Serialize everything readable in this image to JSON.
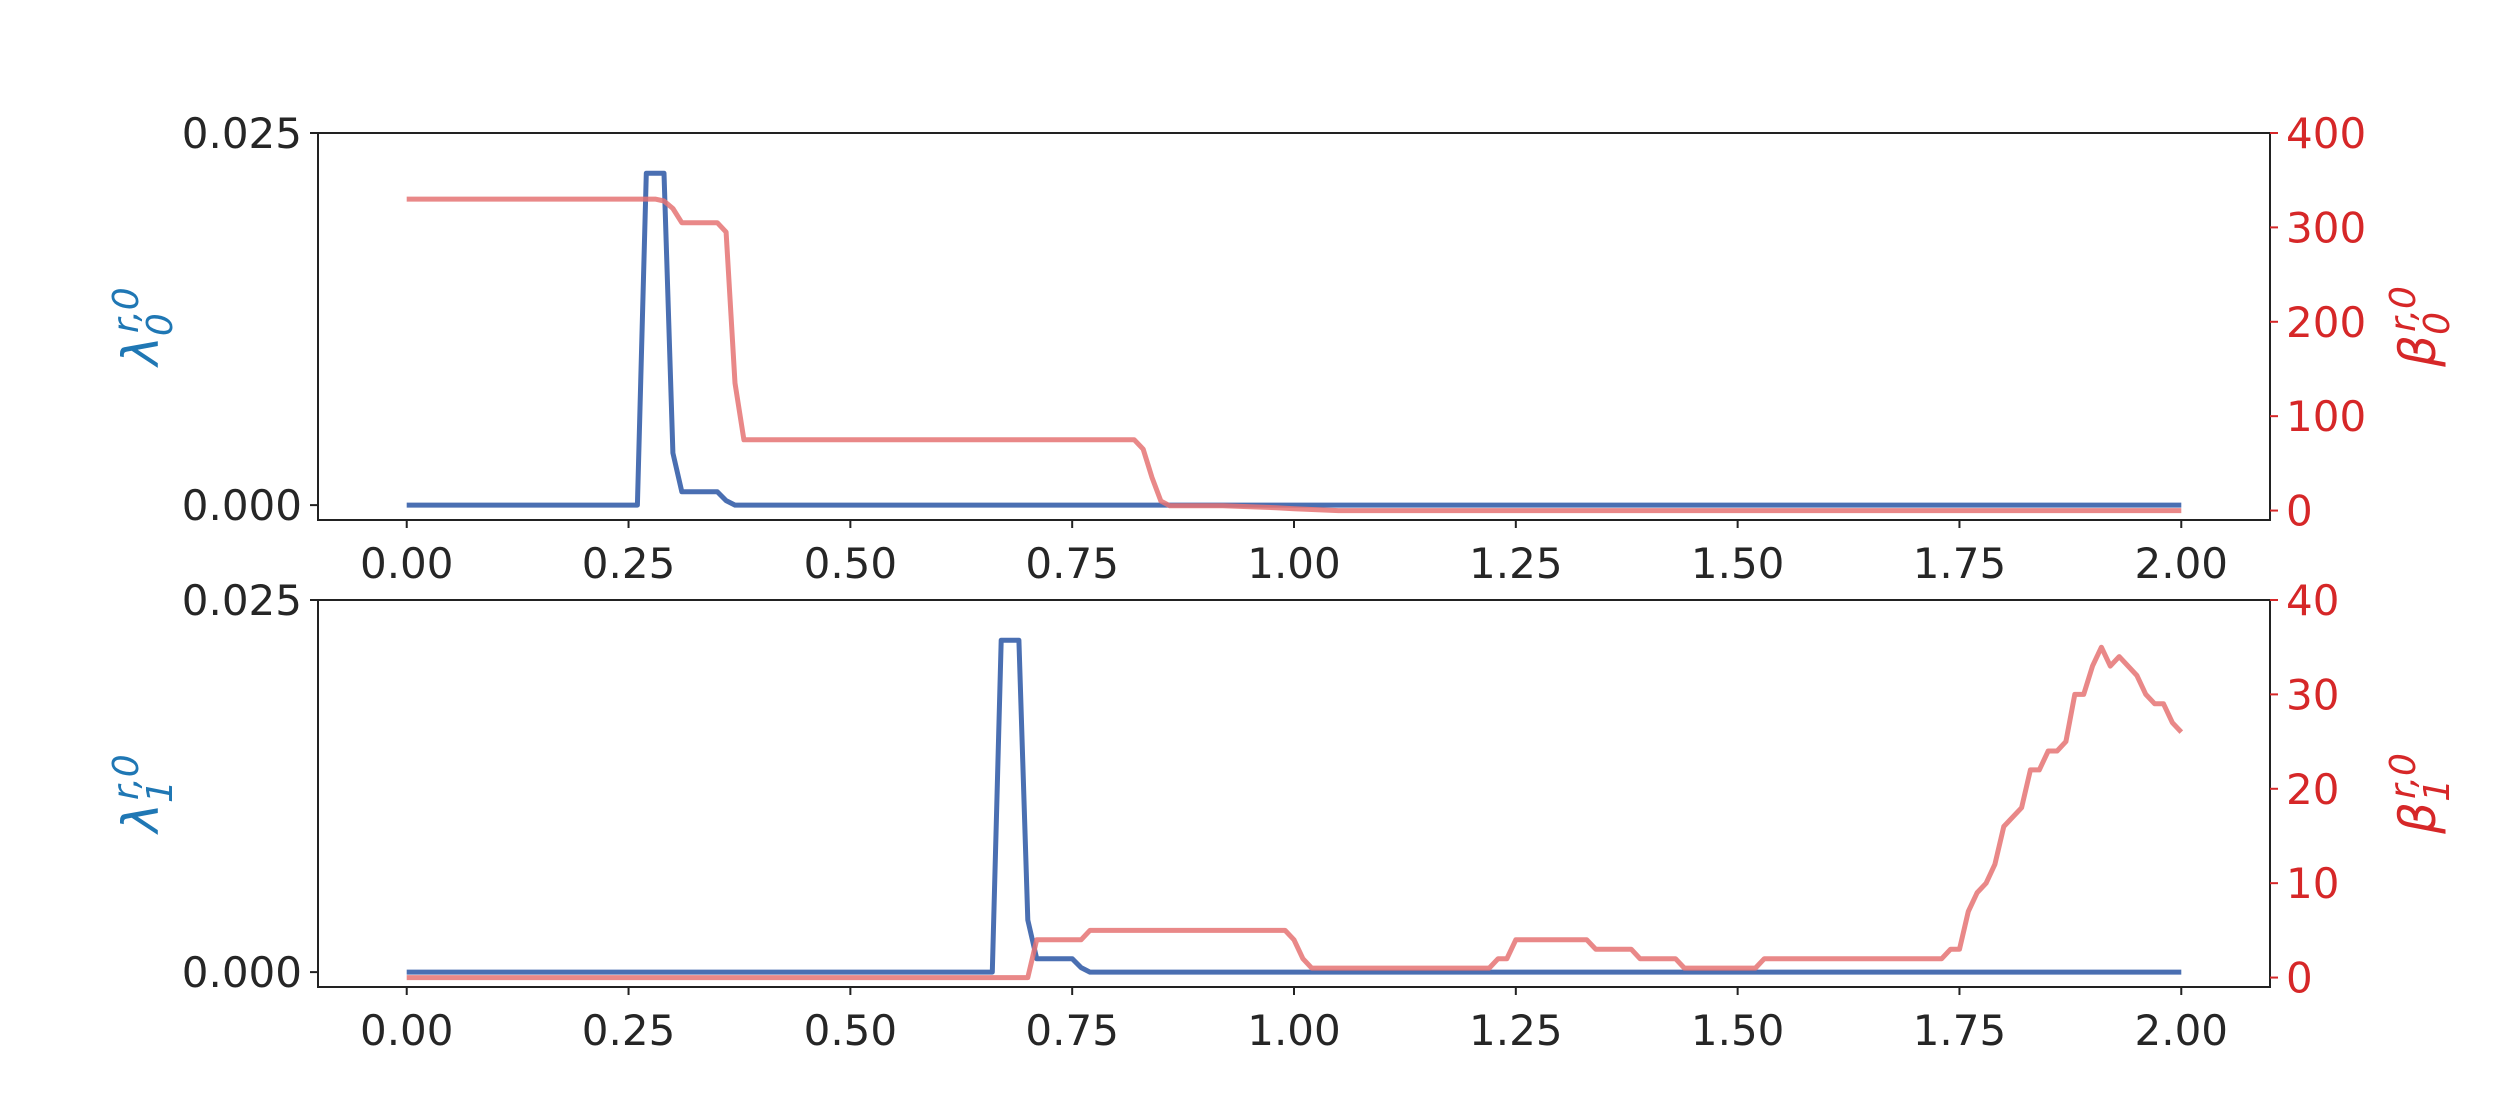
{
  "chart_data": [
    {
      "type": "line",
      "xlabel": "",
      "ylabel": "λ_0^{r,0}",
      "y2label": "β_0^{r,0}",
      "xlim": [
        -0.1,
        2.1
      ],
      "ylim": [
        -0.001,
        0.025
      ],
      "y2lim": [
        -10,
        400
      ],
      "xticks": [
        "0.00",
        "0.25",
        "0.50",
        "0.75",
        "1.00",
        "1.25",
        "1.50",
        "1.75",
        "2.00"
      ],
      "yticks": [
        "0.000",
        "0.025"
      ],
      "y2ticks": [
        "0",
        "100",
        "200",
        "300",
        "400"
      ],
      "grid": false,
      "series": [
        {
          "axis": "left",
          "color": "#4a6fb2",
          "x": [
            0.0,
            0.26,
            0.27,
            0.29,
            0.3,
            0.31,
            0.32,
            0.35,
            0.36,
            0.37,
            0.4,
            1.0,
            2.0
          ],
          "y": [
            0.0,
            0.0,
            0.0223,
            0.0223,
            0.0035,
            0.0009,
            0.0009,
            0.0009,
            0.0003,
            0.0,
            0.0,
            0.0,
            0.0
          ]
        },
        {
          "axis": "right",
          "color": "#e57373",
          "x": [
            0.0,
            0.28,
            0.29,
            0.3,
            0.31,
            0.35,
            0.36,
            0.37,
            0.38,
            0.82,
            0.83,
            0.84,
            0.85,
            0.86,
            0.92,
            0.98,
            1.0,
            1.05,
            2.0
          ],
          "y": [
            330,
            330,
            328,
            320,
            305,
            305,
            295,
            135,
            75,
            75,
            65,
            35,
            10,
            5,
            5,
            3,
            2,
            0,
            0
          ]
        }
      ]
    },
    {
      "type": "line",
      "xlabel": "",
      "ylabel": "λ_1^{r,0}",
      "y2label": "β_1^{r,0}",
      "xlim": [
        -0.1,
        2.1
      ],
      "ylim": [
        -0.001,
        0.025
      ],
      "y2lim": [
        -1,
        40
      ],
      "xticks": [
        "0.00",
        "0.25",
        "0.50",
        "0.75",
        "1.00",
        "1.25",
        "1.50",
        "1.75",
        "2.00"
      ],
      "yticks": [
        "0.000",
        "0.025"
      ],
      "y2ticks": [
        "0",
        "10",
        "20",
        "30",
        "40"
      ],
      "grid": false,
      "series": [
        {
          "axis": "left",
          "color": "#4a6fb2",
          "x": [
            0.0,
            0.66,
            0.67,
            0.69,
            0.7,
            0.71,
            0.72,
            0.75,
            0.76,
            0.77,
            0.8,
            1.0,
            2.0
          ],
          "y": [
            0.0,
            0.0,
            0.0223,
            0.0223,
            0.0035,
            0.0009,
            0.0009,
            0.0009,
            0.0003,
            0.0,
            0.0,
            0.0,
            0.0
          ]
        },
        {
          "axis": "right",
          "color": "#e57373",
          "x": [
            0.0,
            0.7,
            0.71,
            0.76,
            0.77,
            0.99,
            1.0,
            1.01,
            1.02,
            1.22,
            1.23,
            1.24,
            1.25,
            1.33,
            1.34,
            1.38,
            1.39,
            1.43,
            1.44,
            1.52,
            1.53,
            1.73,
            1.74,
            1.75,
            1.76,
            1.77,
            1.78,
            1.79,
            1.8,
            1.82,
            1.83,
            1.84,
            1.85,
            1.86,
            1.87,
            1.88,
            1.89,
            1.9,
            1.91,
            1.92,
            1.93,
            1.95,
            1.96,
            1.97,
            1.98,
            1.99,
            2.0
          ],
          "y": [
            0,
            0,
            4,
            4,
            5,
            5,
            4,
            2,
            1,
            1,
            2,
            2,
            4,
            4,
            3,
            3,
            2,
            2,
            1,
            1,
            2,
            2,
            3,
            3,
            7,
            9,
            10,
            12,
            16,
            18,
            22,
            22,
            24,
            24,
            25,
            30,
            30,
            33,
            35,
            33,
            34,
            32,
            30,
            29,
            29,
            27,
            26
          ]
        }
      ]
    }
  ]
}
